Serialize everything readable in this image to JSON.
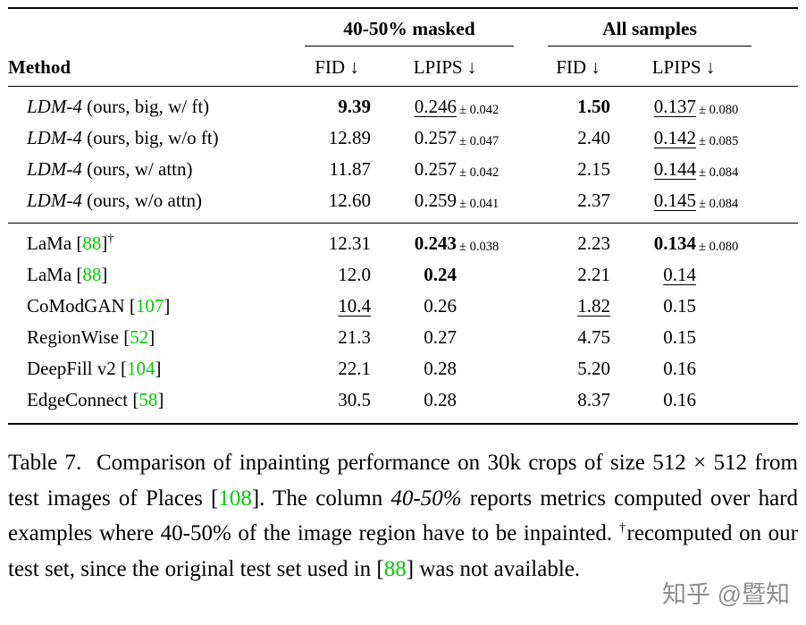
{
  "accent_green": "#00CC00",
  "watermark_color": "#8f8f8f",
  "table": {
    "groups": [
      {
        "label": "40-50% masked"
      },
      {
        "label": "All samples"
      }
    ],
    "headers": {
      "method": "Method",
      "fid1": "FID ↓",
      "lpips1": "LPIPS ↓",
      "fid2": "FID ↓",
      "lpips2": "LPIPS ↓"
    },
    "g1": [
      {
        "m_it": "LDM-4",
        "m_a": " (ours, big, w/ ft)",
        "fid1": "9.39",
        "lpips1": "0.246",
        "pm1": "± 0.042",
        "fid2": "1.50",
        "lpips2": "0.137",
        "pm2": "± 0.080"
      },
      {
        "m_it": "LDM-4",
        "m_a": " (ours, big, w/o ft)",
        "fid1": "12.89",
        "lpips1": "0.257",
        "pm1": "± 0.047",
        "fid2": "2.40",
        "lpips2": "0.142",
        "pm2": "± 0.085"
      },
      {
        "m_it": "LDM-4",
        "m_a": " (ours, w/ attn)",
        "fid1": "11.87",
        "lpips1": "0.257",
        "pm1": "± 0.042",
        "fid2": "2.15",
        "lpips2": "0.144",
        "pm2": "± 0.084"
      },
      {
        "m_it": "LDM-4",
        "m_a": " (ours, w/o attn)",
        "fid1": "12.60",
        "lpips1": "0.259",
        "pm1": "± 0.041",
        "fid2": "2.37",
        "lpips2": "0.145",
        "pm2": "± 0.084"
      }
    ],
    "g2": [
      {
        "m_a": "LaMa [",
        "cite": "88",
        "m_b": "]",
        "sup": "†",
        "fid1": "12.31",
        "lpips1": "0.243",
        "pm1": "± 0.038",
        "fid2": "2.23",
        "lpips2": "0.134",
        "pm2": "± 0.080"
      },
      {
        "m_a": "LaMa [",
        "cite": "88",
        "m_b": "]",
        "sup": "",
        "fid1": "12.0",
        "lpips1": "0.24",
        "pm1": "",
        "fid2": "2.21",
        "lpips2": "0.14",
        "pm2": ""
      },
      {
        "m_a": "CoModGAN [",
        "cite": "107",
        "m_b": "]",
        "sup": "",
        "fid1": "10.4",
        "lpips1": "0.26",
        "pm1": "",
        "fid2": "1.82",
        "lpips2": "0.15",
        "pm2": ""
      },
      {
        "m_a": "RegionWise [",
        "cite": "52",
        "m_b": "]",
        "sup": "",
        "fid1": "21.3",
        "lpips1": "0.27",
        "pm1": "",
        "fid2": "4.75",
        "lpips2": "0.15",
        "pm2": ""
      },
      {
        "m_a": "DeepFill v2 [",
        "cite": "104",
        "m_b": "]",
        "sup": "",
        "fid1": "22.1",
        "lpips1": "0.28",
        "pm1": "",
        "fid2": "5.20",
        "lpips2": "0.16",
        "pm2": ""
      },
      {
        "m_a": "EdgeConnect [",
        "cite": "58",
        "m_b": "]",
        "sup": "",
        "fid1": "30.5",
        "lpips1": "0.28",
        "pm1": "",
        "fid2": "8.37",
        "lpips2": "0.16",
        "pm2": ""
      }
    ]
  },
  "caption": {
    "seg1": "Table 7.  Comparison of inpainting performance on 30k crops of size 512 × 512 from test images of Places [",
    "cite1": "108",
    "seg2": "]. The column ",
    "em1": "40-50%",
    "seg3": " reports metrics computed over hard examples where 40-50% of the image region have to be inpainted. ",
    "sup1": "†",
    "seg4": "recomputed on our test set, since the original test set used in [",
    "cite2": "88",
    "seg5": "] was not available."
  },
  "watermark": "知乎 @暨知"
}
